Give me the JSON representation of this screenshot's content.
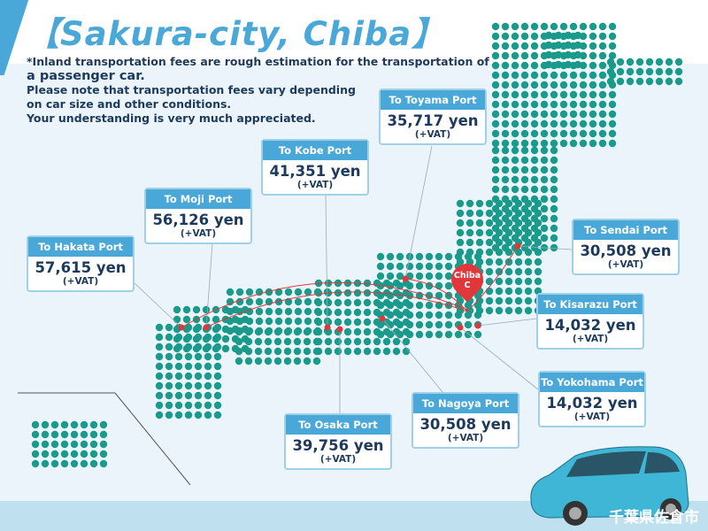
{
  "title": "【Sakura-city, Chiba】",
  "notes": {
    "line1": "*Inland transportation fees are rough estimation for the transportation of",
    "line2": "a passenger car.",
    "line3": "Please note that transportation fees vary depending",
    "line4": "on car size and other conditions.",
    "line5": "Your understanding is very much appreciated."
  },
  "origin": {
    "name": "Chiba",
    "sub": "C"
  },
  "ports": [
    {
      "label": "To Toyama Port",
      "fee": "35,717 yen",
      "vat": "(+VAT)"
    },
    {
      "label": "To Kobe Port",
      "fee": "41,351 yen",
      "vat": "(+VAT)"
    },
    {
      "label": "To Moji Port",
      "fee": "56,126 yen",
      "vat": "(+VAT)"
    },
    {
      "label": "To Hakata Port",
      "fee": "57,615 yen",
      "vat": "(+VAT)"
    },
    {
      "label": "To Sendai Port",
      "fee": "30,508 yen",
      "vat": "(+VAT)"
    },
    {
      "label": "To Kisarazu Port",
      "fee": "14,032 yen",
      "vat": "(+VAT)"
    },
    {
      "label": "To Yokohama Port",
      "fee": "14,032 yen",
      "vat": "(+VAT)"
    },
    {
      "label": "To Nagoya Port",
      "fee": "30,508 yen",
      "vat": "(+VAT)"
    },
    {
      "label": "To Osaka Port",
      "fee": "39,756 yen",
      "vat": "(+VAT)"
    }
  ],
  "watermark": "千葉県佐倉市",
  "colors": {
    "accent": "#4aa8d8",
    "map_dots": "#1a9a8a",
    "marker": "#e0373a",
    "text": "#1d3a5c"
  }
}
